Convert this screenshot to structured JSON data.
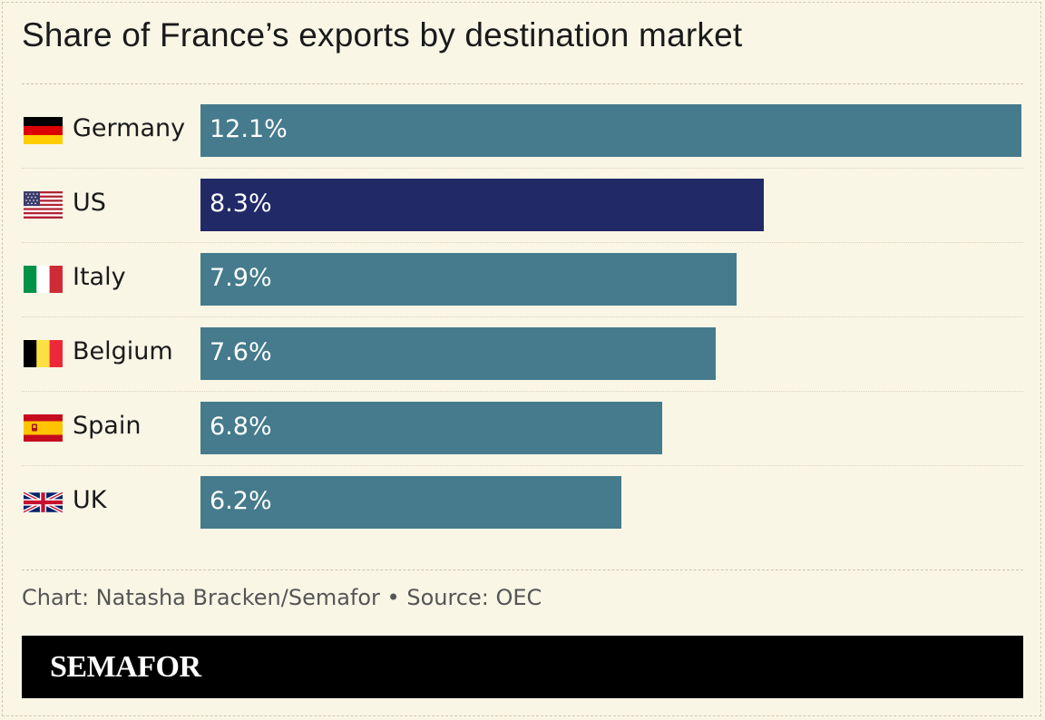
{
  "title": "Share of France’s exports by destination market",
  "source": "Chart: Natasha Bracken/Semafor • Source: OEC",
  "brand": "SEMAFOR",
  "colors": {
    "background": "#f9f6e6",
    "bar": "#457b8c",
    "highlight": "#212a67",
    "brandbar": "#000000"
  },
  "chart_data": {
    "type": "bar",
    "orientation": "horizontal",
    "title": "Share of France’s exports by destination market",
    "unit": "%",
    "xlim": [
      0,
      12.1
    ],
    "categories": [
      "Germany",
      "US",
      "Italy",
      "Belgium",
      "Spain",
      "UK"
    ],
    "values": [
      12.1,
      8.3,
      7.9,
      7.6,
      6.8,
      6.2
    ],
    "labels": [
      "12.1%",
      "8.3%",
      "7.9%",
      "7.6%",
      "6.8%",
      "6.2%"
    ],
    "flags": [
      "germany-flag-icon",
      "us-flag-icon",
      "italy-flag-icon",
      "belgium-flag-icon",
      "spain-flag-icon",
      "uk-flag-icon"
    ],
    "highlighted": [
      "US"
    ]
  }
}
